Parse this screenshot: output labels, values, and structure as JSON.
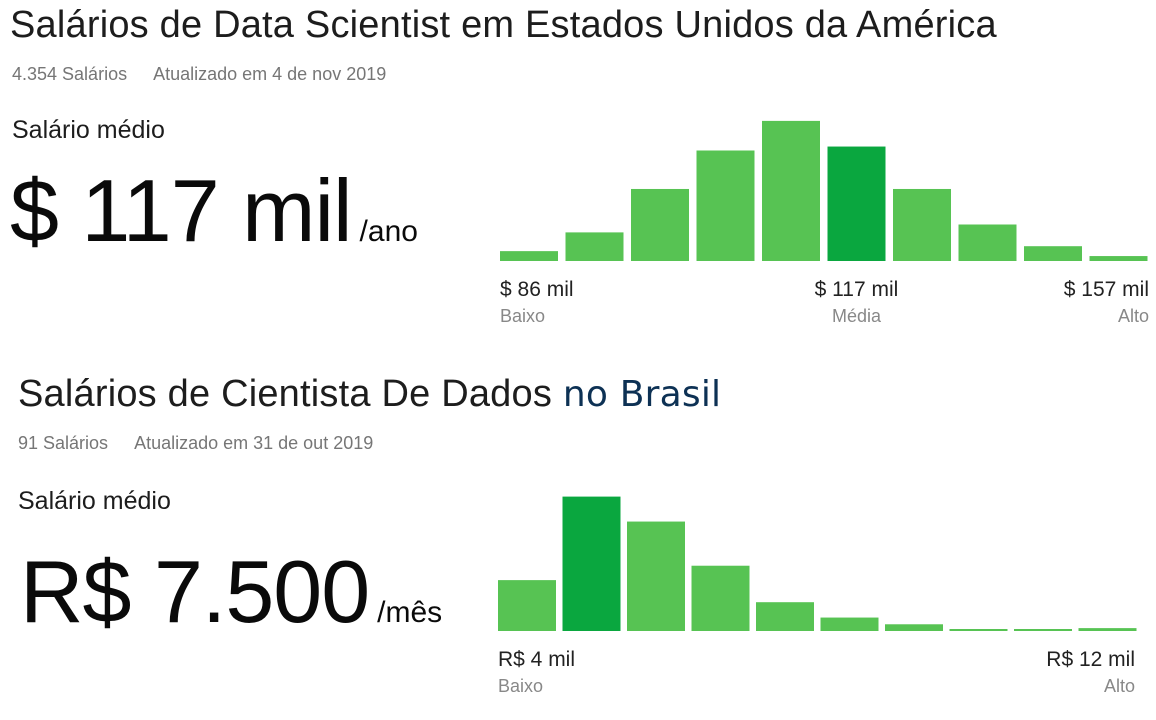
{
  "chart_data": [
    {
      "type": "bar",
      "title_main": "Salários de Data Scientist em Estados Unidos da América",
      "title_accent": "",
      "salary_count": "4.354 Salários",
      "updated": "Atualizado em 4 de nov 2019",
      "average_label": "Salário médio",
      "average_value": "$ 117 mil",
      "average_unit": "/ano",
      "values": [
        10,
        29,
        73,
        112,
        142,
        116,
        73,
        37,
        15,
        5
      ],
      "ylim": [
        0,
        150
      ],
      "highlight_index": 5,
      "ticks": [
        {
          "value": "$ 86 mil",
          "name": "Baixo",
          "align": "left"
        },
        {
          "value": "$ 117 mil",
          "name": "Média",
          "align": "center"
        },
        {
          "value": "$ 157 mil",
          "name": "Alto",
          "align": "right"
        }
      ]
    },
    {
      "type": "bar",
      "title_main": "Salários de Cientista De Dados",
      "title_accent": "no Brasil",
      "salary_count": "91 Salários",
      "updated": "Atualizado em 31 de out 2019",
      "average_label": "Salário médio",
      "average_value": "R$ 7.500",
      "average_unit": "/mês",
      "values": [
        53,
        140,
        114,
        68,
        30,
        14,
        7,
        2,
        2,
        3
      ],
      "ylim": [
        0,
        150
      ],
      "highlight_index": 1,
      "ticks": [
        {
          "value": "R$ 4 mil",
          "name": "Baixo",
          "align": "left"
        },
        {
          "value": "R$ 12 mil",
          "name": "Alto",
          "align": "right"
        }
      ]
    }
  ],
  "colors": {
    "bar": "#57c353",
    "highlight": "#0aa73f",
    "baseline": "#57c353"
  }
}
